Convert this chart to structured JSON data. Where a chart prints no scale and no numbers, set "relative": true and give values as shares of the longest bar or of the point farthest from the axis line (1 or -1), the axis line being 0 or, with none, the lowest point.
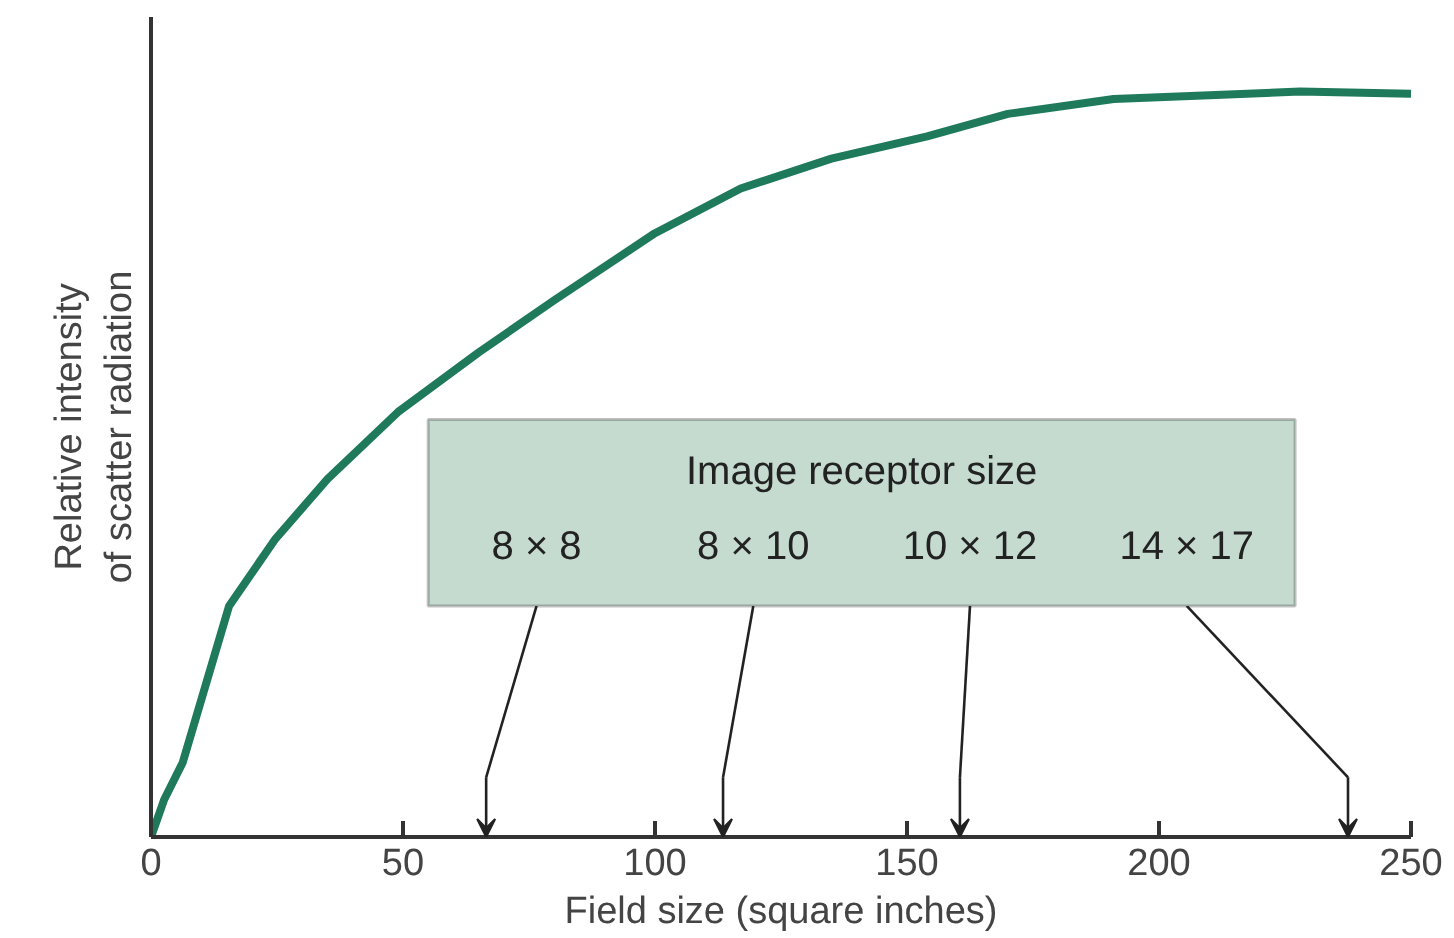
{
  "chart_data": {
    "type": "line",
    "relative": true,
    "xlabel": "Field size (square inches)",
    "ylabel": "Relative intensity\nof scatter radiation",
    "x": [
      0,
      2.6,
      6.3,
      15.5,
      24.7,
      35,
      49,
      65,
      80,
      100,
      117,
      135,
      154,
      170,
      191,
      210,
      228,
      250
    ],
    "series": [
      {
        "color": "#1f7a5c",
        "values": [
          0,
          0.05,
          0.1,
          0.31,
          0.4,
          0.48,
          0.57,
          0.65,
          0.72,
          0.81,
          0.87,
          0.91,
          0.94,
          0.97,
          0.99,
          0.995,
          1.0,
          0.997
        ]
      }
    ],
    "xlim": [
      0,
      250
    ],
    "xticks": [
      0,
      50,
      100,
      150,
      200,
      250
    ],
    "grid": false,
    "marker": "none",
    "line_style": "solid",
    "annotations": [
      "Image receptor size",
      "8 × 8",
      "8 × 10",
      "10 × 12",
      "14 × 17"
    ]
  }
}
